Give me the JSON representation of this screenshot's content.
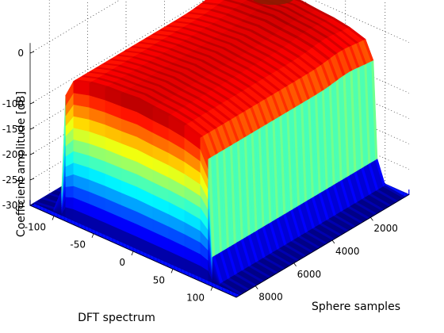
{
  "chart_data": {
    "type": "surface",
    "title": "",
    "xlabel": "DFT spectrum",
    "ylabel": "Sphere samples",
    "zlabel": "Coefficient amplitude [dB]",
    "x_ticks": [
      "-100",
      "-50",
      "0",
      "50",
      "100"
    ],
    "y_ticks": [
      "2000",
      "4000",
      "6000",
      "8000"
    ],
    "z_ticks": [
      "-300",
      "-250",
      "-200",
      "-150",
      "-100",
      "0"
    ],
    "z_tick_values": [
      -300,
      -250,
      -200,
      -150,
      -100,
      0
    ],
    "xlim": [
      -130,
      130
    ],
    "ylim": [
      0,
      9000
    ],
    "zlim": [
      -300,
      0
    ],
    "grid": true,
    "colormap": "jet",
    "surface_profile": {
      "description_x": "DFT spectrum bin",
      "x": [
        -130,
        -105,
        -95,
        -90,
        -80,
        -60,
        -40,
        -20,
        0,
        20,
        40,
        60,
        80,
        90,
        95,
        105,
        130
      ],
      "z_db": [
        -300,
        -295,
        -250,
        -60,
        -25,
        -15,
        -10,
        -8,
        -5,
        -8,
        -10,
        -15,
        -25,
        -60,
        -250,
        -295,
        -300
      ],
      "extent_sphere_samples": [
        200,
        8800
      ]
    },
    "colors": {
      "floor": "#0010ff",
      "low": "#00e5ff",
      "mid": "#ffe400",
      "high": "#ff1a00",
      "peak": "#8c1a00"
    }
  }
}
